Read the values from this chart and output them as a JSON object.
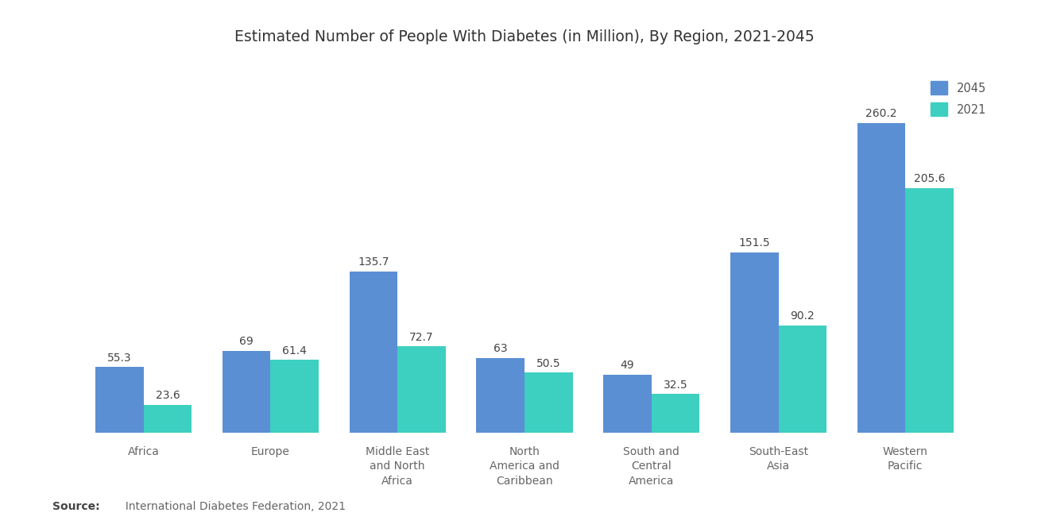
{
  "title": "Estimated Number of People With Diabetes (in Million), By Region, 2021-2045",
  "categories": [
    "Africa",
    "Europe",
    "Middle East\nand North\nAfrica",
    "North\nAmerica and\nCaribbean",
    "South and\nCentral\nAmerica",
    "South-East\nAsia",
    "Western\nPacific"
  ],
  "values_2045": [
    55.3,
    69,
    135.7,
    63,
    49,
    151.5,
    260.2
  ],
  "values_2021": [
    23.6,
    61.4,
    72.7,
    50.5,
    32.5,
    90.2,
    205.6
  ],
  "labels_2045": [
    "55.3",
    "69",
    "135.7",
    "63",
    "49",
    "151.5",
    "260.2"
  ],
  "labels_2021": [
    "23.6",
    "61.4",
    "72.7",
    "50.5",
    "32.5",
    "90.2",
    "205.6"
  ],
  "color_2045": "#5B8FD4",
  "color_2021": "#3DCFC0",
  "legend_2045": "2045",
  "legend_2021": "2021",
  "source_bold": "Source:",
  "source_rest": "  International Diabetes Federation, 2021",
  "background_color": "#FFFFFF",
  "bar_width": 0.38,
  "title_fontsize": 13.5,
  "label_fontsize": 10.5,
  "tick_fontsize": 10,
  "value_fontsize": 10,
  "source_fontsize": 10
}
